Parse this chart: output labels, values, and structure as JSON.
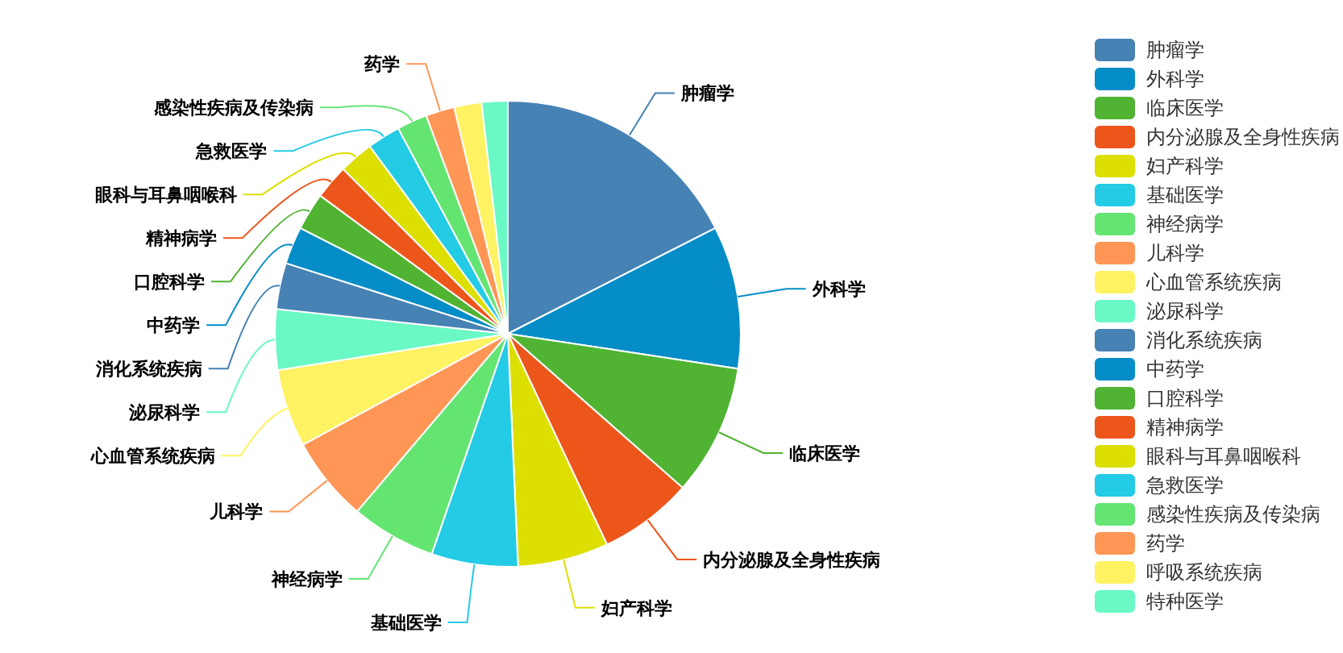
{
  "chart_data": {
    "type": "pie",
    "categories": [
      "肿瘤学",
      "外科学",
      "临床医学",
      "内分泌腺及全身性疾病",
      "妇产科学",
      "基础医学",
      "神经病学",
      "儿科学",
      "心血管系统疾病",
      "泌尿科学",
      "消化系统疾病",
      "中药学",
      "口腔科学",
      "精神病学",
      "眼科与耳鼻咽喉科",
      "急救医学",
      "感染性疾病及传染病",
      "药学",
      "呼吸系统疾病",
      "特种医学"
    ],
    "values": [
      17.5,
      9.9,
      9.1,
      6.5,
      6.3,
      6.0,
      5.9,
      5.9,
      5.4,
      4.2,
      3.2,
      2.6,
      2.6,
      2.4,
      2.4,
      2.3,
      2.1,
      2.0,
      1.9,
      1.8
    ],
    "colors": [
      "#4682b4",
      "#058dc7",
      "#50b432",
      "#ed561b",
      "#dddf00",
      "#24cbe5",
      "#64e572",
      "#ff9655",
      "#fff263",
      "#6af9c4",
      "#4682b4",
      "#058dc7",
      "#50b432",
      "#ed561b",
      "#dddf00",
      "#24cbe5",
      "#64e572",
      "#ff9655",
      "#fff263",
      "#6af9c4"
    ],
    "legend": "right"
  }
}
